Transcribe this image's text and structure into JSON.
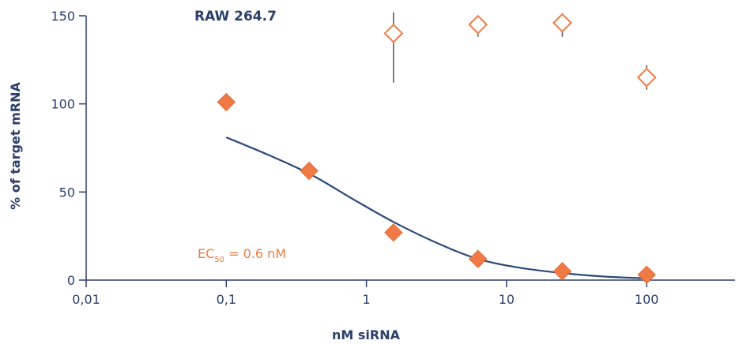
{
  "colors": {
    "axis": "#2b3f6b",
    "fit_line": "#2b4a78",
    "filled_marker": "#f07a45",
    "open_marker": "#f07a45",
    "error_bar": "#555555"
  },
  "chart_data": {
    "type": "scatter",
    "title": "RAW 264.7",
    "xlabel": "nM siRNA",
    "ylabel": "% of target mRNA",
    "x_scale": "log",
    "xlim": [
      0.01,
      500
    ],
    "ylim": [
      0,
      150
    ],
    "x_ticks": [
      0.01,
      0.1,
      1,
      10,
      100
    ],
    "x_tick_labels": [
      "0,01",
      "0,1",
      "1",
      "10",
      "100"
    ],
    "y_ticks": [
      0,
      50,
      100,
      150
    ],
    "y_tick_labels": [
      "0",
      "50",
      "100",
      "150"
    ],
    "annotation": {
      "prefix": "EC",
      "subscript": "50",
      "suffix": " = 0.6 nM"
    },
    "series": [
      {
        "marker": "filled-diamond",
        "x": [
          0.1,
          0.39,
          1.56,
          6.25,
          25,
          100
        ],
        "y": [
          101,
          62,
          27,
          12,
          5,
          3
        ]
      },
      {
        "marker": "open-diamond",
        "x": [
          1.56,
          6.25,
          25,
          100
        ],
        "y": [
          140,
          145,
          146,
          115
        ],
        "err_low": [
          28,
          7,
          8,
          7
        ],
        "err_high": [
          12,
          3,
          3,
          7
        ]
      },
      {
        "line": "fit",
        "x": [
          0.1,
          0.2,
          0.4,
          0.8,
          1.56,
          3.2,
          6.25,
          12.5,
          25,
          50,
          100
        ],
        "y": [
          81,
          71,
          60,
          46,
          33,
          21,
          12,
          7,
          4,
          2,
          1
        ]
      }
    ]
  }
}
